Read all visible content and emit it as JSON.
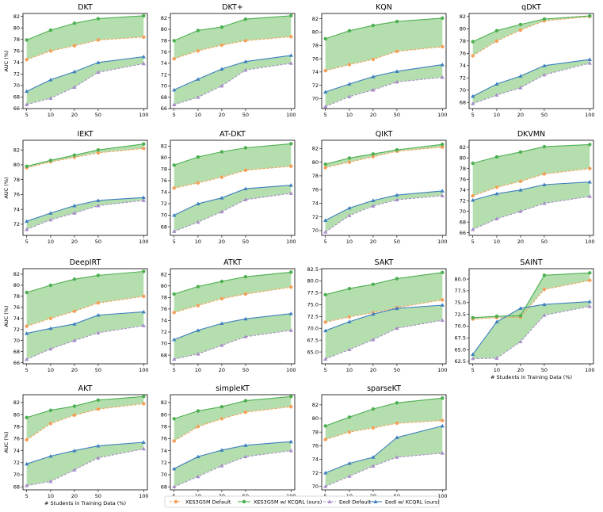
{
  "chart_data": {
    "type": "line",
    "x": [
      5,
      10,
      20,
      50,
      100
    ],
    "xlabel": "# Students in Training Data (%)",
    "ylabel": "AUC (%)",
    "series_names": [
      "XES3G5M Default",
      "XES3G5M w/ KCQRL (ours)",
      "EedI Default",
      "EedI w/ KCQRL (ours)"
    ],
    "colors": {
      "xes_default": "#f5a05a",
      "xes_kcqrl": "#4caf50",
      "eedi_default": "#a78bc9",
      "eedi_kcqrl": "#3d7fbf",
      "fill": "#a8d8a0"
    },
    "panels": [
      {
        "title": "DKT",
        "ylim": [
          66,
          82.5
        ],
        "yticks": [
          66,
          68,
          70,
          72,
          74,
          76,
          78,
          80,
          82
        ],
        "xes_default": [
          74.5,
          76.0,
          76.9,
          77.9,
          78.4
        ],
        "xes_kcqrl": [
          77.9,
          79.6,
          80.8,
          81.6,
          82.1
        ],
        "eedi_default": [
          66.7,
          67.8,
          69.7,
          72.3,
          73.8
        ],
        "eedi_kcqrl": [
          69.0,
          71.0,
          72.4,
          74.0,
          75.0
        ]
      },
      {
        "title": "DKT+",
        "ylim": [
          66,
          82.8
        ],
        "yticks": [
          66,
          68,
          70,
          72,
          74,
          76,
          78,
          80,
          82
        ],
        "xes_default": [
          74.8,
          76.2,
          77.2,
          78.0,
          78.7
        ],
        "xes_kcqrl": [
          78.0,
          79.8,
          80.4,
          81.8,
          82.4
        ],
        "eedi_default": [
          66.7,
          68.0,
          70.0,
          72.8,
          74.0
        ],
        "eedi_kcqrl": [
          69.3,
          71.2,
          73.0,
          74.3,
          75.4
        ]
      },
      {
        "title": "KQN",
        "ylim": [
          68.5,
          82.8
        ],
        "yticks": [
          70,
          72,
          74,
          76,
          78,
          80,
          82
        ],
        "xes_default": [
          74.2,
          75.1,
          75.9,
          77.1,
          77.8
        ],
        "xes_kcqrl": [
          79.0,
          80.2,
          81.0,
          81.6,
          82.1
        ],
        "eedi_default": [
          68.8,
          70.3,
          71.3,
          72.5,
          73.2
        ],
        "eedi_kcqrl": [
          71.0,
          72.2,
          73.3,
          74.1,
          75.1
        ]
      },
      {
        "title": "qDKT",
        "ylim": [
          67,
          82.5
        ],
        "yticks": [
          68,
          70,
          72,
          74,
          76,
          78,
          80,
          82
        ],
        "xes_default": [
          75.6,
          78.0,
          79.8,
          81.3,
          82.0
        ],
        "xes_kcqrl": [
          77.9,
          79.7,
          80.7,
          81.6,
          82.1
        ],
        "eedi_default": [
          67.8,
          69.2,
          70.4,
          72.5,
          74.4
        ],
        "eedi_kcqrl": [
          69.0,
          71.0,
          72.3,
          74.0,
          75.0
        ]
      },
      {
        "title": "IEKT",
        "ylim": [
          70.5,
          83.3
        ],
        "yticks": [
          72,
          74,
          76,
          78,
          80,
          82
        ],
        "xes_default": [
          79.6,
          80.4,
          81.0,
          81.6,
          82.2
        ],
        "xes_kcqrl": [
          79.8,
          80.6,
          81.3,
          82.0,
          82.8
        ],
        "eedi_default": [
          71.3,
          72.6,
          73.5,
          74.5,
          75.2
        ],
        "eedi_kcqrl": [
          72.4,
          73.5,
          74.5,
          75.2,
          75.6
        ]
      },
      {
        "title": "AT-DKT",
        "ylim": [
          66.5,
          83
        ],
        "yticks": [
          68,
          70,
          72,
          74,
          76,
          78,
          80,
          82
        ],
        "xes_default": [
          74.7,
          75.6,
          76.6,
          77.8,
          78.5
        ],
        "xes_kcqrl": [
          78.7,
          80.1,
          81.0,
          81.7,
          82.4
        ],
        "eedi_default": [
          67.2,
          68.8,
          70.6,
          72.7,
          73.8
        ],
        "eedi_kcqrl": [
          70.0,
          72.0,
          73.0,
          74.6,
          75.2
        ]
      },
      {
        "title": "QIKT",
        "ylim": [
          69.3,
          83.2
        ],
        "yticks": [
          70,
          72,
          74,
          76,
          78,
          80,
          82
        ],
        "xes_default": [
          79.2,
          80.0,
          80.8,
          81.6,
          82.2
        ],
        "xes_kcqrl": [
          79.7,
          80.6,
          81.2,
          81.8,
          82.6
        ],
        "eedi_default": [
          69.8,
          72.2,
          73.6,
          74.5,
          75.1
        ],
        "eedi_kcqrl": [
          71.5,
          73.3,
          74.4,
          75.2,
          75.8
        ]
      },
      {
        "title": "DKVMN",
        "ylim": [
          65.5,
          83.3
        ],
        "yticks": [
          66,
          68,
          70,
          72,
          74,
          76,
          78,
          80,
          82
        ],
        "xes_default": [
          72.9,
          74.5,
          75.6,
          77.0,
          78.0
        ],
        "xes_kcqrl": [
          79.0,
          80.2,
          81.1,
          82.1,
          82.5
        ],
        "eedi_default": [
          66.6,
          68.6,
          70.0,
          71.5,
          72.8
        ],
        "eedi_kcqrl": [
          72.1,
          73.3,
          74.0,
          75.0,
          75.5
        ]
      },
      {
        "title": "DeepIRT",
        "ylim": [
          65.8,
          83
        ],
        "yticks": [
          66,
          68,
          70,
          72,
          74,
          76,
          78,
          80,
          82
        ],
        "xes_default": [
          72.6,
          74.0,
          75.3,
          76.8,
          78.0
        ],
        "xes_kcqrl": [
          78.7,
          80.0,
          81.1,
          81.8,
          82.5
        ],
        "eedi_default": [
          66.6,
          68.5,
          70.0,
          71.4,
          72.7
        ],
        "eedi_kcqrl": [
          71.3,
          72.2,
          73.0,
          74.6,
          75.2
        ]
      },
      {
        "title": "ATKT",
        "ylim": [
          66.5,
          83
        ],
        "yticks": [
          68,
          70,
          72,
          74,
          76,
          78,
          80,
          82
        ],
        "xes_default": [
          75.4,
          76.6,
          77.8,
          78.6,
          79.8
        ],
        "xes_kcqrl": [
          78.6,
          79.9,
          80.8,
          81.6,
          82.4
        ],
        "eedi_default": [
          67.3,
          68.2,
          69.7,
          71.2,
          72.3
        ],
        "eedi_kcqrl": [
          70.7,
          72.3,
          73.5,
          74.3,
          75.2
        ]
      },
      {
        "title": "SAKT",
        "ylim": [
          62.5,
          82.6
        ],
        "yticks": [
          65.0,
          67.5,
          70.0,
          72.5,
          75.0,
          77.5,
          80.0,
          82.5
        ],
        "xes_default": [
          71.3,
          72.4,
          73.3,
          74.4,
          76.0
        ],
        "xes_kcqrl": [
          77.1,
          78.4,
          79.3,
          80.5,
          81.8
        ],
        "eedi_default": [
          63.5,
          65.5,
          67.6,
          70.0,
          71.7
        ],
        "eedi_kcqrl": [
          69.5,
          71.4,
          73.0,
          74.2,
          74.9
        ]
      },
      {
        "title": "SAINT",
        "ylim": [
          62,
          82.2
        ],
        "yticks": [
          62.5,
          65.0,
          67.5,
          70.0,
          72.5,
          75.0,
          77.5,
          80.0
        ],
        "xes_default": [
          71.5,
          71.8,
          71.9,
          77.8,
          79.7
        ],
        "xes_kcqrl": [
          71.8,
          72.1,
          72.2,
          80.8,
          81.3
        ],
        "eedi_default": [
          63.1,
          63.2,
          66.7,
          72.3,
          74.2
        ],
        "eedi_kcqrl": [
          64.0,
          70.9,
          73.8,
          74.6,
          75.2
        ]
      },
      {
        "title": "AKT",
        "ylim": [
          67.5,
          83.3
        ],
        "yticks": [
          68,
          70,
          72,
          74,
          76,
          78,
          80,
          82
        ],
        "xes_default": [
          75.8,
          78.5,
          79.9,
          80.9,
          81.8
        ],
        "xes_kcqrl": [
          79.5,
          80.7,
          81.4,
          82.4,
          83.0
        ],
        "eedi_default": [
          68.2,
          68.9,
          70.8,
          72.8,
          74.3
        ],
        "eedi_kcqrl": [
          71.8,
          73.1,
          74.0,
          74.8,
          75.4
        ]
      },
      {
        "title": "simpleKT",
        "ylim": [
          67.5,
          83.3
        ],
        "yticks": [
          68,
          70,
          72,
          74,
          76,
          78,
          80,
          82
        ],
        "xes_default": [
          75.6,
          78.0,
          79.3,
          80.4,
          81.3
        ],
        "xes_kcqrl": [
          79.3,
          80.6,
          81.3,
          82.3,
          83.0
        ],
        "eedi_default": [
          68.0,
          69.7,
          71.5,
          73.0,
          74.0
        ],
        "eedi_kcqrl": [
          71.0,
          73.0,
          74.1,
          74.9,
          75.5
        ]
      },
      {
        "title": "sparseKT",
        "ylim": [
          69.5,
          83.5
        ],
        "yticks": [
          70,
          72,
          74,
          76,
          78,
          80,
          82
        ],
        "xes_default": [
          76.9,
          78.0,
          78.6,
          79.3,
          79.7
        ],
        "xes_kcqrl": [
          78.9,
          80.2,
          81.4,
          82.3,
          83.0
        ],
        "eedi_default": [
          70.0,
          71.5,
          73.0,
          74.3,
          74.9
        ],
        "eedi_kcqrl": [
          72.0,
          73.4,
          74.3,
          77.2,
          78.9
        ]
      }
    ]
  }
}
